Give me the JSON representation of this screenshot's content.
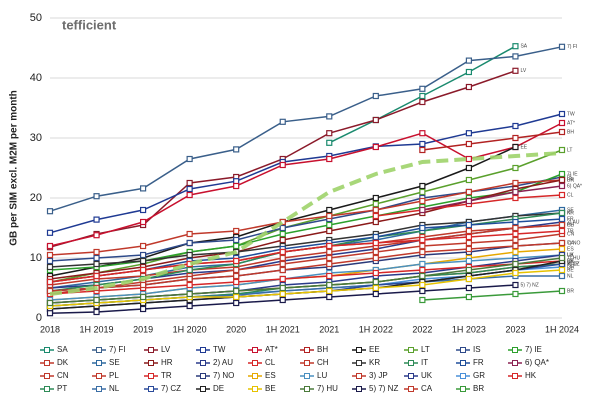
{
  "chart_data": {
    "type": "line",
    "logo": "tefficient",
    "ylabel": "GB per SIM excl. M2M per month",
    "categories": [
      "2018",
      "1H 2019",
      "2019",
      "1H 2020",
      "2020",
      "1H 2021",
      "2021",
      "1H 2022",
      "2022",
      "1H 2023",
      "2023",
      "1H 2024"
    ],
    "ylim": [
      0,
      50
    ],
    "yticks": [
      0,
      10,
      20,
      30,
      40,
      50
    ],
    "grid": true,
    "trend": {
      "color": "#9fd36a",
      "values": [
        4,
        5,
        6.5,
        9,
        11,
        16,
        21,
        24,
        26,
        26.5,
        27,
        27.5
      ]
    },
    "series": [
      {
        "name": "SA",
        "color": "#1a8a6e",
        "values": [
          null,
          null,
          null,
          null,
          null,
          null,
          29.2,
          33,
          37,
          41,
          45.3,
          null
        ]
      },
      {
        "name": "7) FI",
        "color": "#3a5f8a",
        "values": [
          17.8,
          20.3,
          21.6,
          26.5,
          28.1,
          32.7,
          33.6,
          37,
          38.2,
          42.9,
          43.6,
          45.2
        ]
      },
      {
        "name": "LV",
        "color": "#8b1a2a",
        "values": [
          11.8,
          14,
          15.5,
          22.5,
          23.5,
          26.5,
          30.8,
          33,
          36,
          38.5,
          41.2,
          null
        ]
      },
      {
        "name": "TW",
        "color": "#1f3a93",
        "values": [
          14.2,
          16.4,
          18,
          21.5,
          22.8,
          26,
          27,
          28.6,
          29,
          30.8,
          32,
          34
        ]
      },
      {
        "name": "AT*",
        "color": "#c8102e",
        "values": [
          12,
          13.8,
          16,
          20.5,
          22,
          25.5,
          26.5,
          28.5,
          30.8,
          26.5,
          28.5,
          32.5
        ]
      },
      {
        "name": "BH",
        "color": "#b22222",
        "values": [
          null,
          null,
          null,
          null,
          null,
          null,
          null,
          null,
          28,
          29,
          30,
          31
        ]
      },
      {
        "name": "EE",
        "color": "#1a1a1a",
        "values": [
          7,
          8.5,
          10,
          12.5,
          13.5,
          16,
          18,
          20,
          22,
          25,
          28.5,
          null
        ]
      },
      {
        "name": "LT",
        "color": "#5aa02c",
        "values": [
          6,
          7.5,
          9,
          11,
          12,
          15,
          17,
          19,
          21,
          23,
          25,
          28
        ]
      },
      {
        "name": "IS",
        "color": "#2e4a8a",
        "values": [
          9.5,
          10,
          10.5,
          12.5,
          13,
          15,
          16.5,
          18,
          20,
          21,
          22,
          23.5
        ]
      },
      {
        "name": "7) IE",
        "color": "#2ca02c",
        "values": [
          8,
          8.5,
          9.5,
          11,
          12,
          14,
          15.5,
          17,
          18.5,
          20,
          21,
          24
        ]
      },
      {
        "name": "DK",
        "color": "#c0392b",
        "values": [
          10.5,
          11,
          12,
          14,
          14.5,
          16,
          17,
          18,
          19.5,
          21,
          22.5,
          23
        ]
      },
      {
        "name": "SE",
        "color": "#2f6aa0",
        "values": [
          5,
          6,
          7,
          8.5,
          9,
          11,
          12,
          13,
          14.5,
          16,
          17,
          18
        ]
      },
      {
        "name": "HR",
        "color": "#8b1a1a",
        "values": [
          6.5,
          7.5,
          8.5,
          10,
          11,
          13,
          14.5,
          16,
          17.5,
          19.5,
          21.5,
          23
        ]
      },
      {
        "name": "2) AU",
        "color": "#2a3a8a",
        "values": [
          5,
          5.5,
          6.5,
          7.5,
          8,
          9.5,
          10.5,
          11.5,
          13,
          14,
          15,
          16
        ]
      },
      {
        "name": "CL",
        "color": "#d62728",
        "values": [
          null,
          null,
          null,
          null,
          null,
          null,
          null,
          17,
          18,
          19,
          20,
          20.5
        ]
      },
      {
        "name": "CH",
        "color": "#c0392b",
        "values": [
          5.5,
          6.5,
          7,
          8,
          8.5,
          10,
          11,
          12,
          13,
          14,
          15,
          15.5
        ]
      },
      {
        "name": "KR",
        "color": "#333333",
        "values": [
          8.5,
          9,
          9.5,
          10.5,
          11,
          12,
          13,
          14,
          15.5,
          16,
          17,
          17.5
        ]
      },
      {
        "name": "IT",
        "color": "#2e8b57",
        "values": [
          4.5,
          5.5,
          6.5,
          8,
          9,
          11,
          12,
          13.5,
          14.5,
          15.5,
          16.5,
          17.5
        ]
      },
      {
        "name": "FR",
        "color": "#1f4e9a",
        "values": [
          6,
          7,
          8,
          9.5,
          10,
          11.5,
          12.5,
          13.5,
          15,
          15.5,
          16,
          16.5
        ]
      },
      {
        "name": "6) QA*",
        "color": "#8b2252",
        "values": [
          null,
          null,
          null,
          null,
          null,
          null,
          null,
          null,
          18,
          19.5,
          21,
          22
        ]
      },
      {
        "name": "CN",
        "color": "#c0392b",
        "values": [
          4,
          5,
          6,
          7,
          8,
          9,
          10,
          11,
          12,
          12.5,
          13,
          14
        ]
      },
      {
        "name": "PL",
        "color": "#c0392b",
        "values": [
          6,
          7,
          8,
          9,
          9.5,
          11,
          12,
          12.5,
          13.5,
          14.5,
          15,
          15.5
        ]
      },
      {
        "name": "TR",
        "color": "#d62728",
        "values": [
          6,
          7,
          8,
          9,
          9.5,
          11,
          12,
          12.5,
          13,
          13.5,
          14,
          14.5
        ]
      },
      {
        "name": "7) NO",
        "color": "#2a3a7a",
        "values": [
          4.5,
          5,
          5.5,
          6.5,
          7,
          8,
          8.5,
          9.5,
          10.5,
          11,
          12,
          12.5
        ]
      },
      {
        "name": "ES",
        "color": "#e6a800",
        "values": [
          3,
          3.5,
          4,
          5,
          5.5,
          6.5,
          7,
          8,
          9,
          10,
          11,
          11.5
        ]
      },
      {
        "name": "LU",
        "color": "#4a90c0",
        "values": [
          3,
          3.5,
          4,
          5,
          5.5,
          6.5,
          7.5,
          8,
          9,
          9.5,
          10,
          10.5
        ]
      },
      {
        "name": "3) JP",
        "color": "#c0392b",
        "values": [
          2.5,
          3,
          3.5,
          4,
          4.5,
          5,
          5.5,
          6,
          7,
          7.5,
          8.5,
          9
        ]
      },
      {
        "name": "UK",
        "color": "#2a3a8a",
        "values": [
          2.5,
          3,
          3.5,
          4,
          4.5,
          5.5,
          6,
          7,
          7.5,
          8.5,
          9.5,
          10.5
        ]
      },
      {
        "name": "GR",
        "color": "#4a90d9",
        "values": [
          2,
          2.5,
          3,
          3.5,
          4,
          4.5,
          5,
          5.5,
          6.5,
          7,
          8,
          8.5
        ]
      },
      {
        "name": "HK",
        "color": "#d62728",
        "values": [
          4,
          4.5,
          5,
          5.5,
          6,
          6.5,
          7,
          7.5,
          8,
          8.5,
          9,
          9.5
        ]
      },
      {
        "name": "PT",
        "color": "#2e8b57",
        "values": [
          2,
          2.5,
          3,
          3.5,
          4,
          5,
          5.5,
          6,
          7,
          7.5,
          8.5,
          9
        ]
      },
      {
        "name": "NL",
        "color": "#3a6ea5",
        "values": [
          2,
          2.5,
          3,
          3.5,
          3.8,
          4.5,
          5,
          5.5,
          6,
          6.5,
          7,
          7
        ]
      },
      {
        "name": "7) CZ",
        "color": "#2a4a9a",
        "values": [
          1.5,
          2,
          2.5,
          3,
          3.5,
          4,
          4.5,
          5.5,
          6,
          7,
          8,
          9
        ]
      },
      {
        "name": "DE",
        "color": "#222222",
        "values": [
          1.5,
          2,
          2.5,
          3,
          3.5,
          4,
          4.5,
          5,
          6,
          7,
          8,
          9.5
        ]
      },
      {
        "name": "BE",
        "color": "#e6c200",
        "values": [
          2,
          2.5,
          3,
          3.5,
          3.5,
          4,
          4.5,
          5,
          5.5,
          6.5,
          7.5,
          8
        ]
      },
      {
        "name": "7) HU",
        "color": "#4a7a3a",
        "values": [
          2.5,
          3,
          3.5,
          4,
          4.5,
          5,
          5.5,
          6,
          7,
          8,
          9,
          10
        ]
      },
      {
        "name": "5) 7) NZ",
        "color": "#1a1a4a",
        "values": [
          0.8,
          1,
          1.5,
          2,
          2.5,
          3,
          3.5,
          4,
          4.5,
          5,
          5.5,
          null
        ]
      },
      {
        "name": "CA",
        "color": "#c0392b",
        "values": [
          4.5,
          5,
          5.5,
          6.5,
          7,
          8,
          9,
          10,
          11,
          11.5,
          12,
          12.5
        ]
      },
      {
        "name": "BR",
        "color": "#3a9a3a",
        "values": [
          null,
          null,
          null,
          null,
          null,
          null,
          null,
          null,
          3,
          3.5,
          4,
          4.5
        ]
      }
    ]
  }
}
